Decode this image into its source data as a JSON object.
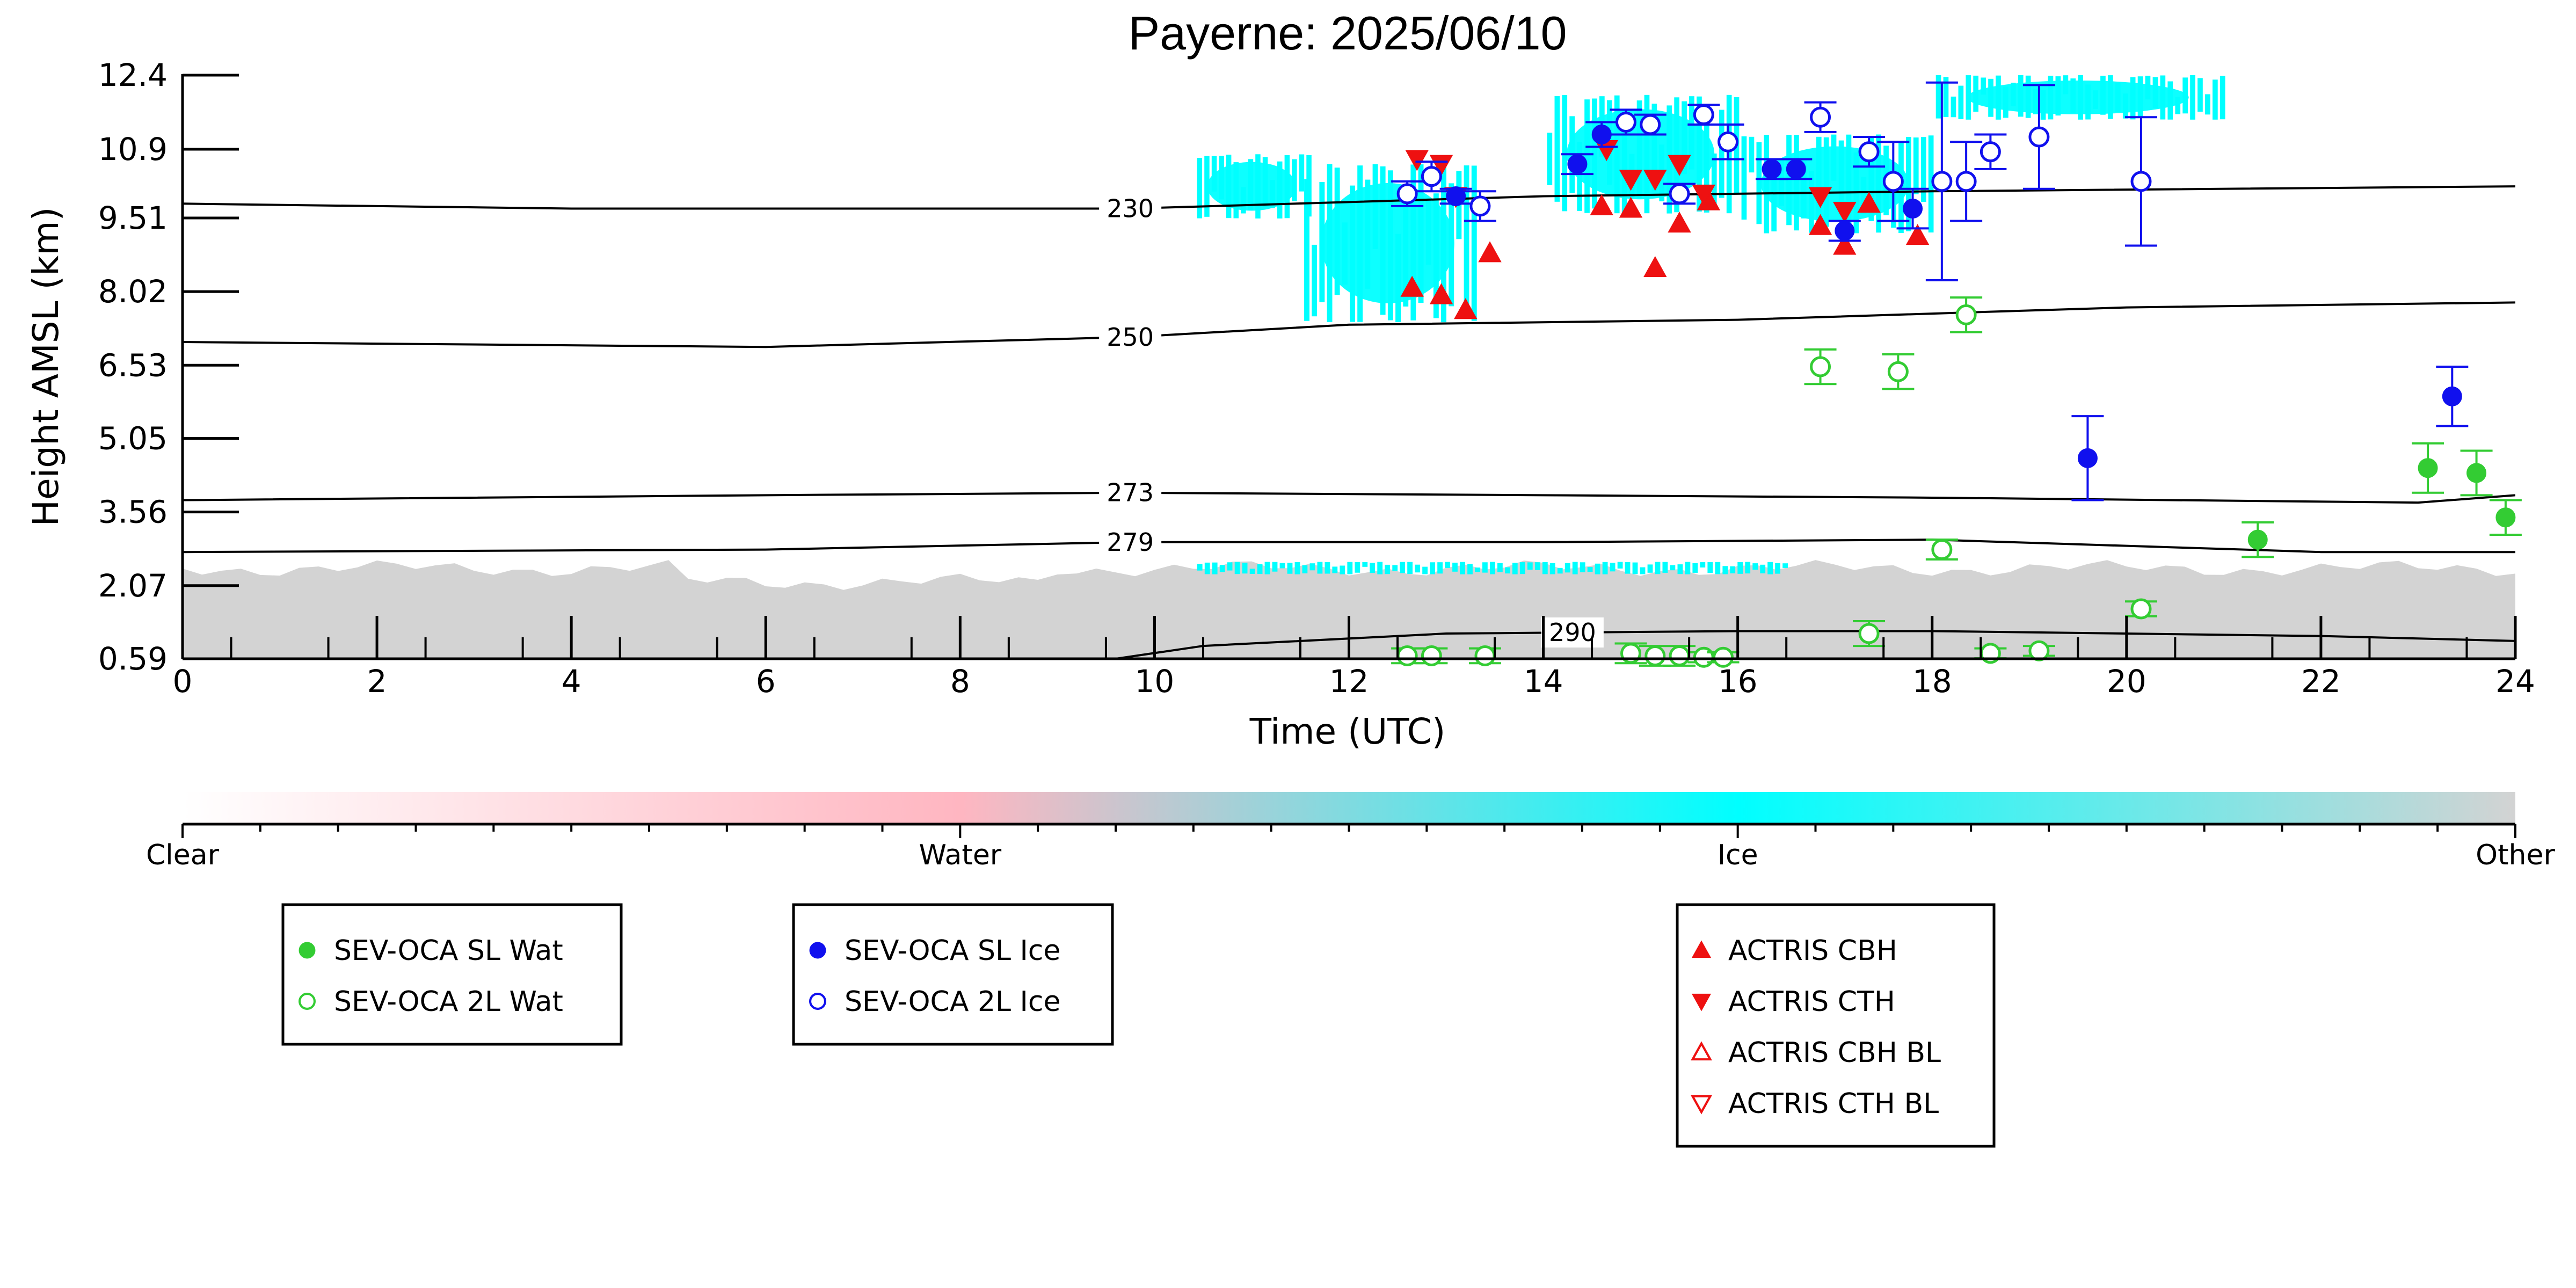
{
  "chart_data": {
    "type": "scatter",
    "title": "Payerne: 2025/06/10",
    "xlabel": "Time (UTC)",
    "ylabel": "Height AMSL (km)",
    "xlim": [
      0,
      24
    ],
    "ylim": [
      0.59,
      12.4
    ],
    "xticks": [
      "0",
      "2",
      "4",
      "6",
      "8",
      "10",
      "12",
      "14",
      "16",
      "18",
      "20",
      "22",
      "24"
    ],
    "yticks": [
      "0.59",
      "2.07",
      "3.56",
      "5.05",
      "6.53",
      "8.02",
      "9.51",
      "10.9",
      "12.4"
    ],
    "colorbar": {
      "labels": [
        "Clear",
        "Water",
        "Ice",
        "Other"
      ],
      "colors": {
        "clear": "#ffffff",
        "water": "#ffb6c1",
        "ice": "#00ffff",
        "other": "#d3d3d3"
      }
    },
    "temperature_contours": [
      {
        "label": "230",
        "label_x": 9.75,
        "points": [
          [
            0,
            9.8
          ],
          [
            4,
            9.7
          ],
          [
            9.75,
            9.7
          ],
          [
            14,
            9.95
          ],
          [
            18,
            10.05
          ],
          [
            24,
            10.15
          ]
        ]
      },
      {
        "label": "250",
        "label_x": 9.75,
        "points": [
          [
            0,
            7.0
          ],
          [
            6,
            6.9
          ],
          [
            9.75,
            7.1
          ],
          [
            12,
            7.35
          ],
          [
            16,
            7.45
          ],
          [
            20,
            7.7
          ],
          [
            24,
            7.8
          ]
        ]
      },
      {
        "label": "273",
        "label_x": 9.75,
        "points": [
          [
            0,
            3.8
          ],
          [
            6,
            3.9
          ],
          [
            9.75,
            3.95
          ],
          [
            14,
            3.9
          ],
          [
            18,
            3.85
          ],
          [
            23,
            3.75
          ],
          [
            24,
            3.9
          ]
        ]
      },
      {
        "label": "279",
        "label_x": 9.75,
        "points": [
          [
            0,
            2.75
          ],
          [
            6,
            2.8
          ],
          [
            9.75,
            2.95
          ],
          [
            14,
            2.95
          ],
          [
            18,
            3.0
          ],
          [
            22,
            2.75
          ],
          [
            24,
            2.75
          ]
        ]
      },
      {
        "label": "290",
        "label_x": 14.3,
        "points": [
          [
            9.6,
            0.59
          ],
          [
            10.5,
            0.85
          ],
          [
            13,
            1.1
          ],
          [
            16,
            1.15
          ],
          [
            18,
            1.15
          ],
          [
            22,
            1.05
          ],
          [
            24,
            0.95
          ]
        ]
      }
    ],
    "regions": [
      {
        "class": "other",
        "description": "",
        "x": [
          0,
          24
        ],
        "y": [
          0.59,
          2.85
        ]
      },
      {
        "class": "ice",
        "x": [
          11.5,
          13.3
        ],
        "y": [
          7.4,
          10.6
        ]
      },
      {
        "class": "ice",
        "x": [
          10.4,
          11.6
        ],
        "y": [
          9.5,
          10.8
        ]
      },
      {
        "class": "ice",
        "x": [
          14.0,
          16.0
        ],
        "y": [
          9.6,
          12.0
        ]
      },
      {
        "class": "ice",
        "x": [
          16.0,
          18.0
        ],
        "y": [
          9.2,
          11.2
        ]
      },
      {
        "class": "ice",
        "x": [
          18.0,
          21.0
        ],
        "y": [
          11.5,
          12.4
        ]
      },
      {
        "class": "ice",
        "x": [
          10.4,
          16.5
        ],
        "y": [
          2.3,
          2.55
        ]
      }
    ],
    "series": [
      {
        "name": "SEV-OCA SL Wat",
        "color": "#33cc33",
        "marker": "circle-filled",
        "points": [
          {
            "x": 21.35,
            "y": 3.0,
            "err": 0.35
          },
          {
            "x": 23.1,
            "y": 4.45,
            "err": 0.5
          },
          {
            "x": 23.6,
            "y": 4.35,
            "err": 0.45
          },
          {
            "x": 23.9,
            "y": 3.45,
            "err": 0.35
          }
        ]
      },
      {
        "name": "SEV-OCA 2L Wat",
        "color": "#33cc33",
        "marker": "circle-open",
        "points": [
          {
            "x": 12.6,
            "y": 0.65,
            "err": 0.15
          },
          {
            "x": 12.85,
            "y": 0.65,
            "err": 0.15
          },
          {
            "x": 13.4,
            "y": 0.65,
            "err": 0.15
          },
          {
            "x": 14.9,
            "y": 0.7,
            "err": 0.2
          },
          {
            "x": 15.15,
            "y": 0.65,
            "err": 0.2
          },
          {
            "x": 15.4,
            "y": 0.65,
            "err": 0.2
          },
          {
            "x": 15.65,
            "y": 0.62,
            "err": 0.1
          },
          {
            "x": 15.85,
            "y": 0.62,
            "err": 0.1
          },
          {
            "x": 16.85,
            "y": 6.5,
            "err": 0.35
          },
          {
            "x": 17.35,
            "y": 1.1,
            "err": 0.25
          },
          {
            "x": 17.65,
            "y": 6.4,
            "err": 0.35
          },
          {
            "x": 18.1,
            "y": 2.8,
            "err": 0.2
          },
          {
            "x": 18.35,
            "y": 7.55,
            "err": 0.35
          },
          {
            "x": 18.6,
            "y": 0.7,
            "err": 0.1
          },
          {
            "x": 19.1,
            "y": 0.75,
            "err": 0.1
          },
          {
            "x": 20.15,
            "y": 1.6,
            "err": 0.15
          }
        ]
      },
      {
        "name": "SEV-OCA SL Ice",
        "color": "#1010ee",
        "marker": "circle-filled",
        "points": [
          {
            "x": 13.1,
            "y": 9.95,
            "err": 0.15
          },
          {
            "x": 14.35,
            "y": 10.6,
            "err": 0.2
          },
          {
            "x": 14.6,
            "y": 11.2,
            "err": 0.25
          },
          {
            "x": 16.35,
            "y": 10.5,
            "err": 0.2
          },
          {
            "x": 16.6,
            "y": 10.5,
            "err": 0.2
          },
          {
            "x": 17.1,
            "y": 9.25,
            "err": 0.2
          },
          {
            "x": 17.8,
            "y": 9.7,
            "err": 0.4
          },
          {
            "x": 19.6,
            "y": 4.65,
            "err": 0.85
          },
          {
            "x": 23.35,
            "y": 5.9,
            "err": 0.6
          }
        ]
      },
      {
        "name": "SEV-OCA 2L Ice",
        "color": "#1010ee",
        "marker": "circle-open",
        "points": [
          {
            "x": 12.6,
            "y": 10.0,
            "err": 0.25
          },
          {
            "x": 12.85,
            "y": 10.35,
            "err": 0.3
          },
          {
            "x": 13.35,
            "y": 9.75,
            "err": 0.3
          },
          {
            "x": 14.85,
            "y": 11.45,
            "err": 0.25
          },
          {
            "x": 15.1,
            "y": 11.4,
            "err": 0.2
          },
          {
            "x": 15.4,
            "y": 10.0,
            "err": 0.2
          },
          {
            "x": 15.65,
            "y": 11.6,
            "err": 0.2
          },
          {
            "x": 15.9,
            "y": 11.05,
            "err": 0.35
          },
          {
            "x": 16.85,
            "y": 11.55,
            "err": 0.3
          },
          {
            "x": 17.35,
            "y": 10.85,
            "err": 0.3
          },
          {
            "x": 17.6,
            "y": 10.25,
            "err": 0.8
          },
          {
            "x": 18.1,
            "y": 10.25,
            "err": 2.0
          },
          {
            "x": 18.35,
            "y": 10.25,
            "err": 0.8
          },
          {
            "x": 18.6,
            "y": 10.85,
            "err": 0.35
          },
          {
            "x": 19.1,
            "y": 11.15,
            "err": 1.05
          },
          {
            "x": 20.15,
            "y": 10.25,
            "err": 1.3
          }
        ]
      },
      {
        "name": "ACTRIS CBH",
        "color": "#ee1111",
        "marker": "triangle-up-filled",
        "points": [
          {
            "x": 12.65,
            "y": 8.1
          },
          {
            "x": 12.95,
            "y": 7.95
          },
          {
            "x": 13.2,
            "y": 7.65
          },
          {
            "x": 13.45,
            "y": 8.8
          },
          {
            "x": 14.6,
            "y": 9.75
          },
          {
            "x": 14.9,
            "y": 9.7
          },
          {
            "x": 15.15,
            "y": 8.5
          },
          {
            "x": 15.4,
            "y": 9.4
          },
          {
            "x": 15.7,
            "y": 9.85
          },
          {
            "x": 16.85,
            "y": 9.35
          },
          {
            "x": 17.1,
            "y": 8.95
          },
          {
            "x": 17.35,
            "y": 9.8
          },
          {
            "x": 17.85,
            "y": 9.15
          }
        ]
      },
      {
        "name": "ACTRIS CTH",
        "color": "#ee1111",
        "marker": "triangle-down-filled",
        "points": [
          {
            "x": 12.7,
            "y": 10.7
          },
          {
            "x": 12.95,
            "y": 10.6
          },
          {
            "x": 13.1,
            "y": 9.95
          },
          {
            "x": 14.65,
            "y": 10.9
          },
          {
            "x": 14.9,
            "y": 10.3
          },
          {
            "x": 15.15,
            "y": 10.3
          },
          {
            "x": 15.4,
            "y": 10.6
          },
          {
            "x": 15.65,
            "y": 10.0
          },
          {
            "x": 16.85,
            "y": 9.95
          },
          {
            "x": 17.1,
            "y": 9.65
          }
        ]
      },
      {
        "name": "ACTRIS CBH BL",
        "color": "#ee1111",
        "marker": "triangle-up-open",
        "points": []
      },
      {
        "name": "ACTRIS CTH BL",
        "color": "#ee1111",
        "marker": "triangle-down-open",
        "points": []
      }
    ],
    "legends": [
      [
        "SEV-OCA SL Wat",
        "SEV-OCA 2L Wat"
      ],
      [
        "SEV-OCA SL Ice",
        "SEV-OCA 2L Ice"
      ],
      [
        "ACTRIS CBH",
        "ACTRIS CTH",
        "ACTRIS CBH BL",
        "ACTRIS CTH BL"
      ]
    ]
  }
}
